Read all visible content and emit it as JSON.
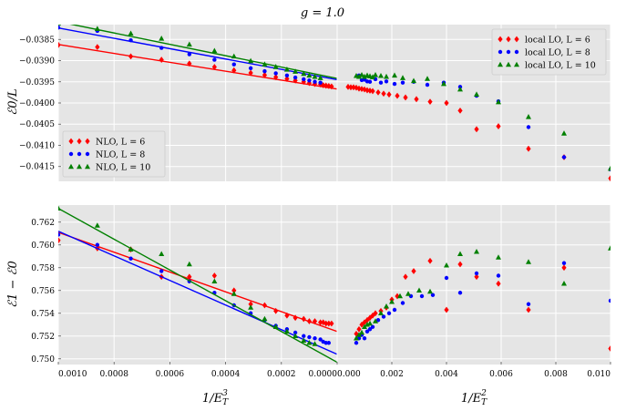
{
  "chart_data": {
    "type": "scatter",
    "title": "g = 1.0",
    "panels": [
      {
        "id": "top-left",
        "xlabel": "",
        "ylabel": "ℰ0/L",
        "xlim": [
          0.001,
          0.0
        ],
        "ylim": [
          -0.04185,
          -0.03815
        ],
        "xticks": [],
        "yticks": [
          -0.0385,
          -0.039,
          -0.0395,
          -0.04,
          -0.0405,
          -0.041,
          -0.0415
        ],
        "ytick_labels": [
          "−0.0385",
          "−0.0390",
          "−0.0395",
          "−0.0400",
          "−0.0405",
          "−0.0410",
          "−0.0415"
        ],
        "legend": "lower-left",
        "series": [
          {
            "name": "NLO, L = 6",
            "color": "#ff0000",
            "marker": "diamond",
            "x": [
              0.001,
              0.00086,
              0.00074,
              0.00063,
              0.00053,
              0.00044,
              0.00037,
              0.00031,
              0.00026,
              0.00022,
              0.00018,
              0.00015,
              0.00012,
              0.0001,
              8e-05,
              6e-05,
              5e-05,
              4e-05,
              3e-05,
              2e-05
            ],
            "y": [
              -0.03863,
              -0.03868,
              -0.0389,
              -0.03898,
              -0.03907,
              -0.03915,
              -0.03923,
              -0.03929,
              -0.03934,
              -0.03939,
              -0.03943,
              -0.03947,
              -0.0395,
              -0.03953,
              -0.03955,
              -0.03956,
              -0.03958,
              -0.03959,
              -0.0396,
              -0.03961
            ],
            "fit": {
              "x": [
                0.001,
                0.0
              ],
              "y": [
                -0.03862,
                -0.03967
              ]
            }
          },
          {
            "name": "NLO, L = 8",
            "color": "#0000ff",
            "marker": "circle",
            "x": [
              0.001,
              0.00086,
              0.00074,
              0.00063,
              0.00053,
              0.00044,
              0.00037,
              0.00031,
              0.00026,
              0.00022,
              0.00018,
              0.00015,
              0.00012,
              0.0001,
              8e-05,
              6e-05
            ],
            "y": [
              -0.03822,
              -0.0383,
              -0.03852,
              -0.0387,
              -0.03885,
              -0.03898,
              -0.03909,
              -0.03918,
              -0.03925,
              -0.0393,
              -0.03935,
              -0.0394,
              -0.03944,
              -0.03947,
              -0.0395,
              -0.03952
            ],
            "fit": {
              "x": [
                0.001,
                0.0
              ],
              "y": [
                -0.03823,
                -0.03945
              ]
            }
          },
          {
            "name": "NLO, L = 10",
            "color": "#008000",
            "marker": "triangle",
            "x": [
              0.001,
              0.00086,
              0.00074,
              0.00063,
              0.00053,
              0.00044,
              0.00037,
              0.00031,
              0.00026,
              0.00022,
              0.00018,
              0.00015,
              0.00012,
              0.0001,
              8e-05,
              6e-05
            ],
            "y": [
              -0.03812,
              -0.03825,
              -0.03836,
              -0.03848,
              -0.03862,
              -0.03877,
              -0.0389,
              -0.03901,
              -0.03909,
              -0.03915,
              -0.03921,
              -0.03926,
              -0.03931,
              -0.03935,
              -0.03938,
              -0.03941
            ],
            "fit": {
              "x": [
                0.001,
                0.0
              ],
              "y": [
                -0.03808,
                -0.03942
              ]
            }
          }
        ]
      },
      {
        "id": "top-right",
        "xlabel": "",
        "ylabel": "",
        "xlim": [
          0.0,
          0.01
        ],
        "ylim": [
          -0.04185,
          -0.03815
        ],
        "xticks": [],
        "yticks": [],
        "legend": "upper-right",
        "series": [
          {
            "name": "local LO, L = 6",
            "color": "#ff0000",
            "marker": "diamond",
            "x": [
              0.0004,
              0.0005,
              0.0006,
              0.0007,
              0.0008,
              0.0009,
              0.001,
              0.0011,
              0.0012,
              0.0013,
              0.0015,
              0.0017,
              0.0019,
              0.0022,
              0.0025,
              0.0029,
              0.0034,
              0.004,
              0.0045,
              0.0051,
              0.0059,
              0.007,
              0.0083,
              0.01
            ],
            "y": [
              -0.03962,
              -0.03963,
              -0.03963,
              -0.03964,
              -0.03966,
              -0.03967,
              -0.03968,
              -0.0397,
              -0.03971,
              -0.03972,
              -0.03975,
              -0.03978,
              -0.0398,
              -0.03983,
              -0.03987,
              -0.03991,
              -0.03997,
              -0.04,
              -0.04018,
              -0.04062,
              -0.04055,
              -0.04108,
              -0.04128,
              -0.04178
            ]
          },
          {
            "name": "local LO, L = 8",
            "color": "#0000ff",
            "marker": "circle",
            "x": [
              0.0008,
              0.0009,
              0.001,
              0.0011,
              0.0012,
              0.0014,
              0.0016,
              0.0018,
              0.0021,
              0.0024,
              0.0028,
              0.0033,
              0.0039,
              0.0045,
              0.0051,
              0.0059,
              0.007,
              0.0083,
              0.01
            ],
            "y": [
              -0.03935,
              -0.03946,
              -0.03945,
              -0.03949,
              -0.0395,
              -0.03944,
              -0.03952,
              -0.03949,
              -0.03955,
              -0.03952,
              -0.0395,
              -0.03957,
              -0.03952,
              -0.03962,
              -0.03983,
              -0.03996,
              -0.04057,
              -0.04128,
              -0.04157
            ]
          },
          {
            "name": "local LO, L = 10",
            "color": "#008000",
            "marker": "triangle",
            "x": [
              0.0007,
              0.0008,
              0.0009,
              0.001,
              0.0011,
              0.0012,
              0.0013,
              0.0014,
              0.0016,
              0.0018,
              0.0021,
              0.0024,
              0.0028,
              0.0033,
              0.0039,
              0.0045,
              0.0051,
              0.0059,
              0.007,
              0.0083,
              0.01
            ],
            "y": [
              -0.03936,
              -0.03938,
              -0.03934,
              -0.03938,
              -0.03935,
              -0.03937,
              -0.03939,
              -0.03934,
              -0.03936,
              -0.03938,
              -0.03935,
              -0.03941,
              -0.03948,
              -0.03943,
              -0.03955,
              -0.03968,
              -0.0398,
              -0.03998,
              -0.04033,
              -0.04072,
              -0.04155
            ]
          }
        ]
      },
      {
        "id": "bottom-left",
        "xlabel": "1/E_T^3",
        "ylabel": "ℰ1 − ℰ0",
        "xlim": [
          0.001,
          0.0
        ],
        "ylim": [
          0.7495,
          0.7635
        ],
        "xticks": [
          0.001,
          0.0008,
          0.0006,
          0.0004,
          0.0002,
          0.0
        ],
        "xtick_labels": [
          "0.0010",
          "0.0008",
          "0.0006",
          "0.0004",
          "0.0002",
          "0.0000"
        ],
        "yticks": [
          0.75,
          0.752,
          0.754,
          0.756,
          0.758,
          0.76,
          0.762
        ],
        "ytick_labels": [
          "0.750",
          "0.752",
          "0.754",
          "0.756",
          "0.758",
          "0.760",
          "0.762"
        ],
        "legend": "none",
        "series": [
          {
            "name": "NLO, L = 6",
            "color": "#ff0000",
            "marker": "diamond",
            "x": [
              0.001,
              0.00086,
              0.00074,
              0.00063,
              0.00053,
              0.00044,
              0.00037,
              0.00031,
              0.00026,
              0.00022,
              0.00018,
              0.00015,
              0.00012,
              0.0001,
              8e-05,
              6e-05,
              5e-05,
              4e-05,
              3e-05,
              2e-05
            ],
            "y": [
              0.7604,
              0.7597,
              0.7596,
              0.7572,
              0.7572,
              0.7573,
              0.756,
              0.7548,
              0.7547,
              0.7542,
              0.7538,
              0.7536,
              0.7535,
              0.7533,
              0.7533,
              0.7532,
              0.7532,
              0.7531,
              0.7531,
              0.7531
            ],
            "fit": {
              "x": [
                0.001,
                0.0
              ],
              "y": [
                0.7611,
                0.7524
              ]
            }
          },
          {
            "name": "NLO, L = 8",
            "color": "#0000ff",
            "marker": "circle",
            "x": [
              0.001,
              0.00086,
              0.00074,
              0.00063,
              0.00053,
              0.00044,
              0.00037,
              0.00031,
              0.00026,
              0.00022,
              0.00018,
              0.00015,
              0.00012,
              0.0001,
              8e-05,
              6e-05,
              5e-05,
              4e-05,
              3e-05
            ],
            "y": [
              0.7609,
              0.76,
              0.7588,
              0.7577,
              0.7568,
              0.7558,
              0.7547,
              0.754,
              0.7534,
              0.7529,
              0.7526,
              0.7523,
              0.752,
              0.7519,
              0.7518,
              0.7517,
              0.7515,
              0.7514,
              0.7514
            ],
            "fit": {
              "x": [
                0.001,
                0.0
              ],
              "y": [
                0.7612,
                0.7504
              ]
            }
          },
          {
            "name": "NLO, L = 10",
            "color": "#008000",
            "marker": "triangle",
            "x": [
              0.001,
              0.00086,
              0.00074,
              0.00063,
              0.00053,
              0.00044,
              0.00037,
              0.00031,
              0.00026,
              0.00022,
              0.00018,
              0.00015,
              0.00012,
              0.0001,
              8e-05
            ],
            "y": [
              0.7632,
              0.7617,
              0.7596,
              0.7592,
              0.7583,
              0.7568,
              0.7557,
              0.7545,
              0.7535,
              0.7528,
              0.7524,
              0.752,
              0.7516,
              0.7514,
              0.7513
            ],
            "fit": {
              "x": [
                0.001,
                0.0
              ],
              "y": [
                0.7632,
                0.7497
              ]
            }
          }
        ]
      },
      {
        "id": "bottom-right",
        "xlabel": "1/E_T^2",
        "ylabel": "",
        "xlim": [
          0.0,
          0.01
        ],
        "ylim": [
          0.7495,
          0.7635
        ],
        "xticks": [
          0.0,
          0.002,
          0.004,
          0.006,
          0.008,
          0.01
        ],
        "xtick_labels": [
          "0.000",
          "0.002",
          "0.004",
          "0.006",
          "0.008",
          "0.010"
        ],
        "yticks": [],
        "legend": "none",
        "series": [
          {
            "name": "local LO, L = 6",
            "color": "#ff0000",
            "marker": "diamond",
            "x": [
              0.0007,
              0.0008,
              0.0009,
              0.001,
              0.0011,
              0.0012,
              0.0013,
              0.0014,
              0.0016,
              0.0018,
              0.002,
              0.0022,
              0.0025,
              0.0028,
              0.0034,
              0.004,
              0.0045,
              0.0051,
              0.0059,
              0.007,
              0.0083,
              0.01
            ],
            "y": [
              0.7522,
              0.7526,
              0.753,
              0.7532,
              0.7534,
              0.7536,
              0.7538,
              0.754,
              0.7542,
              0.7545,
              0.7552,
              0.7555,
              0.7572,
              0.7577,
              0.7586,
              0.7543,
              0.7583,
              0.7572,
              0.7566,
              0.7543,
              0.758,
              0.7509
            ]
          },
          {
            "name": "local LO, L = 8",
            "color": "#0000ff",
            "marker": "circle",
            "x": [
              0.0007,
              0.0008,
              0.0009,
              0.001,
              0.0011,
              0.0012,
              0.0013,
              0.0015,
              0.0017,
              0.0019,
              0.0021,
              0.0024,
              0.0027,
              0.0031,
              0.0035,
              0.004,
              0.0045,
              0.0051,
              0.0059,
              0.007,
              0.0083,
              0.01
            ],
            "y": [
              0.7514,
              0.7518,
              0.7521,
              0.7518,
              0.7524,
              0.7526,
              0.7528,
              0.7534,
              0.7537,
              0.754,
              0.7543,
              0.7549,
              0.7555,
              0.7555,
              0.7556,
              0.7571,
              0.7558,
              0.7575,
              0.7573,
              0.7548,
              0.7584,
              0.7551
            ]
          },
          {
            "name": "local LO, L = 10",
            "color": "#008000",
            "marker": "triangle",
            "x": [
              0.0007,
              0.0008,
              0.0009,
              0.001,
              0.0011,
              0.0012,
              0.0014,
              0.0016,
              0.0018,
              0.002,
              0.0023,
              0.0026,
              0.003,
              0.0034,
              0.004,
              0.0045,
              0.0051,
              0.0059,
              0.007,
              0.0083,
              0.01
            ],
            "y": [
              0.7518,
              0.7521,
              0.7523,
              0.7528,
              0.753,
              0.7531,
              0.7533,
              0.754,
              0.7546,
              0.755,
              0.7555,
              0.7557,
              0.756,
              0.7559,
              0.7582,
              0.7592,
              0.7594,
              0.7589,
              0.7585,
              0.7566,
              0.7597
            ]
          }
        ]
      }
    ]
  }
}
